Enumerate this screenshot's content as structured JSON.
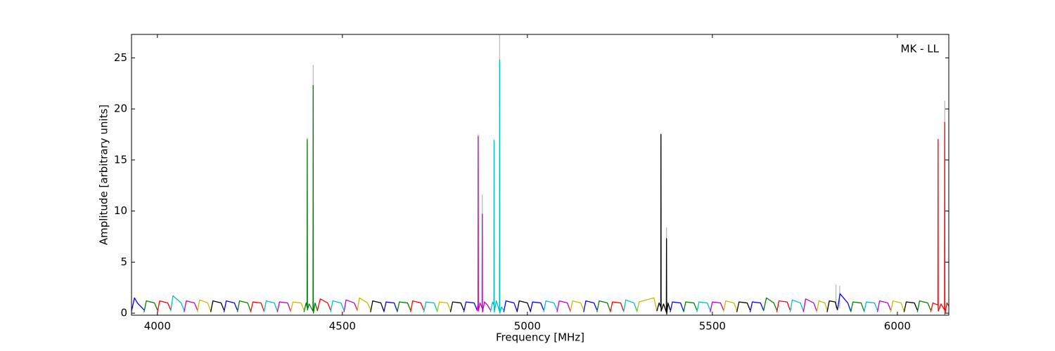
{
  "chart_data": {
    "type": "line",
    "xlabel": "Frequency [MHz]",
    "ylabel": "Amplitude [arbitrary units]",
    "annotation": "MK - LL",
    "xlim": [
      3930,
      6139
    ],
    "ylim": [
      -0.2,
      27.3
    ],
    "xticks": [
      4000,
      4500,
      5000,
      5500,
      6000
    ],
    "yticks": [
      0,
      5,
      10,
      15,
      20,
      25
    ],
    "grid": false,
    "series": [
      {
        "color": "#bbbbbb",
        "x": [
          4405,
          4405,
          4405,
          4421,
          4421,
          4421,
          4867,
          4867,
          4867,
          4878,
          4878,
          4878,
          4910,
          4910,
          4910,
          4925,
          4925,
          4925,
          5361,
          5361,
          5361,
          5376,
          5376,
          5376,
          5834,
          5834,
          5834,
          5844,
          5844,
          5844,
          6110,
          6110,
          6110,
          6128,
          6128
        ],
        "values": [
          0.5,
          17.2,
          null,
          0.5,
          24.3,
          null,
          0.5,
          17.5,
          null,
          0.5,
          11.6,
          null,
          0.5,
          17.0,
          null,
          0.5,
          27.3,
          null,
          0.5,
          17.6,
          null,
          0.5,
          8.4,
          null,
          0.5,
          2.8,
          null,
          0.5,
          2.7,
          null,
          0.5,
          17.1,
          null,
          0.5,
          20.8
        ]
      },
      {
        "color": "#0000ff",
        "x": [
          3930,
          3938,
          3946,
          3964,
          null,
          4180,
          4186,
          4208,
          4216,
          null,
          4612,
          4618,
          4640,
          4648,
          null,
          4828,
          4834,
          4856,
          4864,
          null,
          4936,
          4942,
          4964,
          4972,
          null,
          5008,
          5014,
          5036,
          5044,
          null,
          5152,
          5158,
          5180,
          5188,
          null,
          5386,
          5392,
          5414,
          5422,
          null,
          5602,
          5608,
          5630,
          5638,
          null,
          5838,
          5845,
          5866,
          5874
        ],
        "values": [
          0.2,
          1.5,
          1.0,
          0.3,
          null,
          0.1,
          1.2,
          1.0,
          0.3,
          null,
          0.1,
          1.1,
          1.0,
          0.2,
          null,
          0.1,
          1.1,
          1.0,
          0.3,
          null,
          0.1,
          1.2,
          1.0,
          0.2,
          null,
          0.1,
          1.1,
          1.0,
          0.3,
          null,
          0.1,
          1.2,
          1.0,
          0.3,
          null,
          0.1,
          1.1,
          1.0,
          0.2,
          null,
          0.1,
          1.1,
          1.0,
          0.3,
          null,
          0.3,
          1.9,
          1.0,
          0.2
        ]
      },
      {
        "color": "#007f00",
        "x": [
          3964,
          3970,
          3992,
          4000,
          null,
          4216,
          4222,
          4244,
          4252,
          null,
          4396,
          4402,
          4404.5,
          4405,
          4405.5,
          4410,
          4420.5,
          4421,
          4421.5,
          4426,
          4432,
          null,
          4648,
          4654,
          4676,
          4684,
          null,
          5188,
          5194,
          5216,
          5224,
          null,
          5422,
          5428,
          5450,
          5458,
          null,
          5638,
          5646,
          5666,
          5674,
          null,
          5874,
          5880,
          5902,
          5910,
          null,
          6054,
          6060,
          6082,
          6090
        ],
        "values": [
          0.1,
          1.2,
          1.0,
          0.3,
          null,
          0.1,
          1.2,
          1.0,
          0.2,
          null,
          0.1,
          1.0,
          0.6,
          17.0,
          0.3,
          0.9,
          0.2,
          22.3,
          0.0,
          1.0,
          0.3,
          null,
          0.1,
          1.1,
          1.0,
          0.3,
          null,
          0.1,
          1.2,
          1.0,
          0.2,
          null,
          0.1,
          1.1,
          1.0,
          0.3,
          null,
          0.2,
          1.5,
          1.0,
          0.3,
          null,
          0.1,
          1.1,
          1.0,
          0.2,
          null,
          0.1,
          1.2,
          1.0,
          0.3
        ]
      },
      {
        "color": "#ff0000",
        "x": [
          4000,
          4006,
          4028,
          4036,
          null,
          4252,
          4258,
          4280,
          4288,
          null,
          4432,
          4440,
          4460,
          4468,
          null,
          4684,
          4690,
          4712,
          4720,
          null,
          5224,
          5230,
          5252,
          5260,
          null,
          5674,
          5680,
          5702,
          5710,
          null,
          6090,
          6096,
          6109.5,
          6110,
          6110.5,
          6118,
          6127.5,
          6128,
          6128.5,
          6134,
          6139
        ],
        "values": [
          0.1,
          1.2,
          1.0,
          0.3,
          null,
          0.1,
          1.1,
          1.0,
          0.2,
          null,
          0.2,
          1.4,
          1.0,
          0.3,
          null,
          0.1,
          1.2,
          1.0,
          0.3,
          null,
          0.1,
          1.1,
          1.0,
          0.2,
          null,
          0.1,
          1.2,
          1.1,
          0.3,
          null,
          0.1,
          1.0,
          0.8,
          17.0,
          0.2,
          0.9,
          0.3,
          18.7,
          -0.1,
          1.0,
          0.7
        ]
      },
      {
        "color": "#00bfbf",
        "x": [
          4036,
          4042,
          4064,
          4072,
          null,
          4288,
          4294,
          4316,
          4324,
          null,
          4468,
          4474,
          4496,
          4504,
          null,
          4720,
          4726,
          4748,
          4756,
          null,
          4900,
          4906,
          4909.5,
          4910,
          4910.5,
          4916,
          4924.5,
          4925,
          4925.5,
          4930,
          4936,
          null,
          5044,
          5050,
          5072,
          5080,
          null,
          5260,
          5266,
          5288,
          5296,
          null,
          5458,
          5464,
          5486,
          5494,
          null,
          5710,
          5716,
          5738,
          5746,
          null,
          5910,
          5916,
          5938,
          5946
        ],
        "values": [
          0.2,
          1.7,
          1.0,
          0.3,
          null,
          0.1,
          1.2,
          1.0,
          0.2,
          null,
          0.1,
          1.2,
          1.0,
          0.3,
          null,
          0.1,
          1.1,
          1.0,
          0.2,
          null,
          0.1,
          1.1,
          0.8,
          16.9,
          0.1,
          1.2,
          0.2,
          24.8,
          0.0,
          0.6,
          0.3,
          null,
          0.1,
          1.2,
          1.0,
          0.3,
          null,
          0.1,
          1.3,
          1.0,
          0.2,
          null,
          0.1,
          1.1,
          1.0,
          0.3,
          null,
          0.1,
          1.3,
          1.0,
          0.2,
          null,
          0.1,
          1.1,
          1.0,
          0.3
        ]
      },
      {
        "color": "#bf00bf",
        "x": [
          4072,
          4078,
          4100,
          4108,
          null,
          4324,
          4330,
          4352,
          4360,
          null,
          4504,
          4510,
          4532,
          4540,
          null,
          4864,
          4866.5,
          4867,
          4867.5,
          4872,
          4877.5,
          4878,
          4878.5,
          4884,
          4892,
          4900,
          null,
          5080,
          5086,
          5108,
          5116,
          null,
          5494,
          5500,
          5522,
          5530,
          null,
          5746,
          5752,
          5774,
          5782,
          null,
          5946,
          5952,
          5974,
          5982
        ],
        "values": [
          0.1,
          1.2,
          1.0,
          0.3,
          null,
          0.1,
          1.1,
          1.0,
          0.2,
          null,
          0.1,
          1.3,
          1.0,
          0.3,
          null,
          0.2,
          0.9,
          17.3,
          0.2,
          1.0,
          0.5,
          9.7,
          0.1,
          1.1,
          0.8,
          0.3,
          null,
          0.1,
          1.2,
          1.0,
          0.2,
          null,
          0.1,
          1.1,
          1.0,
          0.3,
          null,
          0.1,
          1.4,
          1.0,
          0.2,
          null,
          0.1,
          1.2,
          1.0,
          0.3
        ]
      },
      {
        "color": "#bfbf00",
        "x": [
          4108,
          4114,
          4136,
          4144,
          null,
          4360,
          4366,
          4388,
          4396,
          null,
          4540,
          4546,
          4568,
          4576,
          null,
          4756,
          4762,
          4784,
          4792,
          null,
          5116,
          5122,
          5144,
          5152,
          null,
          5296,
          5302,
          5342,
          5350,
          null,
          5530,
          5536,
          5558,
          5566,
          null,
          5782,
          5788,
          5804,
          5810,
          null,
          5982,
          5988,
          6010,
          6018
        ],
        "values": [
          0.1,
          1.3,
          1.0,
          0.2,
          null,
          0.1,
          1.1,
          1.0,
          0.3,
          null,
          0.2,
          1.5,
          1.0,
          0.3,
          null,
          0.1,
          1.1,
          1.0,
          0.2,
          null,
          0.1,
          1.2,
          1.0,
          0.3,
          null,
          0.1,
          1.1,
          1.5,
          0.2,
          null,
          0.1,
          1.2,
          1.0,
          0.3,
          null,
          0.1,
          1.2,
          1.0,
          0.3,
          null,
          0.1,
          1.2,
          1.0,
          0.2
        ]
      },
      {
        "color": "#000000",
        "x": [
          4144,
          4150,
          4172,
          4180,
          null,
          4576,
          4582,
          4604,
          4612,
          null,
          4792,
          4798,
          4820,
          4828,
          null,
          4972,
          4978,
          5000,
          5008,
          null,
          5350,
          5356,
          5360.5,
          5361,
          5361.5,
          5368,
          5375.5,
          5376,
          5376.5,
          5380,
          5386,
          null,
          5566,
          5572,
          5594,
          5602,
          null,
          5810,
          5816,
          5832,
          5838,
          null,
          6018,
          6024,
          6046,
          6054
        ],
        "values": [
          0.1,
          1.2,
          1.0,
          0.3,
          null,
          0.1,
          1.2,
          1.0,
          0.2,
          null,
          0.1,
          1.1,
          1.0,
          0.3,
          null,
          0.1,
          1.2,
          1.0,
          0.2,
          null,
          0.2,
          1.0,
          0.6,
          17.5,
          0.2,
          0.9,
          0.1,
          7.3,
          -0.1,
          1.0,
          0.3,
          null,
          0.1,
          1.1,
          1.0,
          0.3,
          null,
          0.1,
          1.2,
          1.1,
          0.3,
          null,
          0.1,
          1.1,
          1.0,
          0.3
        ]
      }
    ]
  }
}
